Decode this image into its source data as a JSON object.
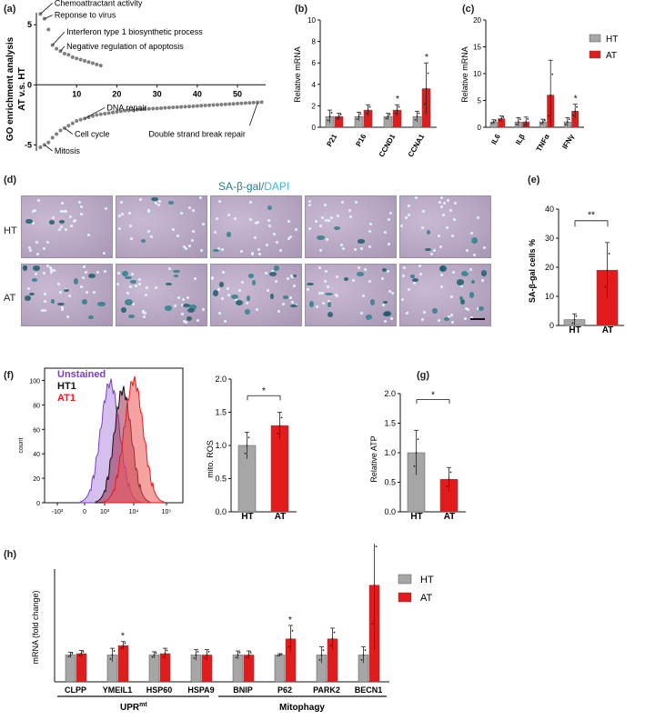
{
  "panels": {
    "a": {
      "label": "(a)",
      "ylabel_line1": "GO enrichment analysis",
      "ylabel_line2": "AT v.s. HT",
      "annotations": [
        "Chemoattractant activity",
        "Reponse to virus",
        "Interferon type 1 biosynthetic process",
        "Negative regulation of apoptosis",
        "DNA repair",
        "Cell cycle",
        "Mitosis",
        "Double strand break repair"
      ],
      "colors": {
        "dots": "#808080"
      }
    },
    "b": {
      "label": "(b)",
      "ylabel": "Relative mRNA",
      "categories": [
        "P21",
        "P16",
        "CCND1",
        "CCNA1"
      ]
    },
    "c": {
      "label": "(c)",
      "ylabel": "Relative mRNA",
      "categories": [
        "IL6",
        "ILβ",
        "TNFα",
        "IFNγ"
      ],
      "legend": [
        "HT",
        "AT"
      ]
    },
    "d": {
      "label": "(d)",
      "title_part1": "SA-β-gal",
      "title_sep": "/",
      "title_part2": "DAPI",
      "row_labels": [
        "HT",
        "AT"
      ]
    },
    "e": {
      "label": "(e)",
      "ylabel": "SA-β-gal cells %",
      "sig": "**",
      "categories": [
        "HT",
        "AT"
      ]
    },
    "f": {
      "label": "(f)",
      "hist_legend": [
        "Unstained",
        "HT1",
        "AT1"
      ],
      "hist_ylabel": "count",
      "hist_yticks": [
        "0",
        "20",
        "40",
        "60",
        "80",
        "100"
      ],
      "hist_xticks": [
        "-10³",
        "0",
        "10³",
        "10⁴",
        "10⁵"
      ],
      "bar_ylabel": "mito. ROS",
      "sig": "*",
      "categories": [
        "HT",
        "AT"
      ]
    },
    "g": {
      "label": "(g)",
      "ylabel": "Relative ATP",
      "sig": "*",
      "categories": [
        "HT",
        "AT"
      ]
    },
    "h": {
      "label": "(h)",
      "ylabel": "mRNA (fold change)",
      "categories": [
        "CLPP",
        "YMEIL1",
        "HSP60",
        "HSPA9",
        "BNIP",
        "P62",
        "PARK2",
        "BECN1"
      ],
      "group1": "UPR",
      "group1_sup": "mt",
      "group2": "Mitophagy",
      "legend": [
        "HT",
        "AT"
      ]
    }
  },
  "colors": {
    "ht": "#a6a6a6",
    "at": "#e21c1c",
    "title_blue": "#2a7a8c",
    "dapi": "#3fb6e0"
  },
  "chart_data": [
    {
      "type": "scatter",
      "panel": "a",
      "ylabel": "GO enrichment analysis AT v.s. HT",
      "xlim": [
        0,
        57
      ],
      "ylim": [
        -5.5,
        6
      ],
      "xticks": [
        10,
        20,
        30,
        40,
        50
      ],
      "yticks": [
        -5,
        0,
        5
      ],
      "series": [
        {
          "x": [
            1,
            2,
            3,
            4,
            5,
            6,
            7,
            8,
            9,
            10,
            11,
            12,
            13,
            14,
            15,
            16
          ],
          "y": [
            5.9,
            5.5,
            4.6,
            3.3,
            3.0,
            2.8,
            2.6,
            2.5,
            2.3,
            2.2,
            2.1,
            2.0,
            1.9,
            1.8,
            1.7,
            1.6
          ]
        },
        {
          "x": [
            1,
            2,
            3,
            4,
            5,
            6,
            7,
            8,
            9,
            10,
            11,
            12,
            13,
            14,
            15,
            16,
            17,
            18,
            19,
            20,
            21,
            22,
            23,
            24,
            25,
            26,
            27,
            28,
            29,
            30,
            31,
            32,
            33,
            34,
            35,
            36,
            37,
            38,
            39,
            40,
            41,
            42,
            43,
            44,
            45,
            46,
            47,
            48,
            49,
            50,
            51,
            52,
            53,
            54,
            55,
            56
          ],
          "y": [
            -5.2,
            -5.0,
            -4.8,
            -4.4,
            -4.1,
            -3.8,
            -3.6,
            -3.4,
            -3.2,
            -3.0,
            -2.9,
            -2.8,
            -2.7,
            -2.6,
            -2.5,
            -2.45,
            -2.4,
            -2.35,
            -2.3,
            -2.25,
            -2.2,
            -2.15,
            -2.12,
            -2.1,
            -2.07,
            -2.05,
            -2.02,
            -2.0,
            -1.98,
            -1.96,
            -1.94,
            -1.92,
            -1.9,
            -1.88,
            -1.86,
            -1.84,
            -1.82,
            -1.8,
            -1.78,
            -1.76,
            -1.74,
            -1.72,
            -1.7,
            -1.68,
            -1.66,
            -1.64,
            -1.62,
            -1.6,
            -1.58,
            -1.56,
            -1.54,
            -1.52,
            -1.5,
            -1.48,
            -1.46,
            -1.44
          ]
        }
      ]
    },
    {
      "type": "bar",
      "panel": "b",
      "ylabel": "Relative mRNA",
      "ylim": [
        0,
        10
      ],
      "yticks": [
        0,
        2,
        4,
        6,
        8,
        10
      ],
      "categories": [
        "P21",
        "P16",
        "CCND1",
        "CCNA1"
      ],
      "series": [
        {
          "name": "HT",
          "values": [
            1.0,
            1.0,
            1.0,
            1.0
          ],
          "err": [
            0.6,
            0.4,
            0.3,
            0.5
          ]
        },
        {
          "name": "AT",
          "values": [
            1.0,
            1.6,
            1.6,
            3.6
          ],
          "err": [
            0.3,
            0.5,
            0.5,
            2.4
          ]
        }
      ],
      "sig": [
        null,
        null,
        "*",
        "*"
      ]
    },
    {
      "type": "bar",
      "panel": "c",
      "ylabel": "Relative mRNA",
      "ylim": [
        0,
        20
      ],
      "yticks": [
        0,
        5,
        10,
        15,
        20
      ],
      "categories": [
        "IL6",
        "ILβ",
        "TNFα",
        "IFNγ"
      ],
      "series": [
        {
          "name": "HT",
          "values": [
            1.0,
            1.0,
            1.0,
            1.0
          ],
          "err": [
            0.4,
            0.8,
            0.5,
            0.8
          ]
        },
        {
          "name": "AT",
          "values": [
            1.6,
            1.0,
            6.0,
            3.0
          ],
          "err": [
            0.5,
            0.9,
            6.5,
            1.3
          ]
        }
      ],
      "sig": [
        null,
        null,
        null,
        "*"
      ]
    },
    {
      "type": "bar",
      "panel": "e",
      "ylabel": "SA-β-gal cells %",
      "ylim": [
        0,
        40
      ],
      "yticks": [
        0,
        10,
        20,
        30,
        40
      ],
      "categories": [
        "HT",
        "AT"
      ],
      "values": [
        2.0,
        19.0
      ],
      "err": [
        2.0,
        9.5
      ]
    },
    {
      "type": "line",
      "panel": "f-histogram",
      "ylabel": "count",
      "ylim": [
        0,
        110
      ],
      "xticks": [
        "-10³",
        "0",
        "10³",
        "10⁴",
        "10⁵"
      ],
      "series": [
        {
          "name": "Unstained"
        },
        {
          "name": "HT1"
        },
        {
          "name": "AT1"
        }
      ]
    },
    {
      "type": "bar",
      "panel": "f",
      "ylabel": "mito. ROS",
      "ylim": [
        0,
        2.0
      ],
      "yticks": [
        0.0,
        0.5,
        1.0,
        1.5,
        2.0
      ],
      "categories": [
        "HT",
        "AT"
      ],
      "values": [
        1.0,
        1.3
      ],
      "err": [
        0.2,
        0.2
      ]
    },
    {
      "type": "bar",
      "panel": "g",
      "ylabel": "Relative ATP",
      "ylim": [
        0,
        2.0
      ],
      "yticks": [
        0.0,
        0.5,
        1.0,
        1.5,
        2.0
      ],
      "categories": [
        "HT",
        "AT"
      ],
      "values": [
        1.0,
        0.55
      ],
      "err": [
        0.38,
        0.2
      ]
    },
    {
      "type": "bar",
      "panel": "h",
      "ylabel": "mRNA (fold change)",
      "categories": [
        "CLPP",
        "YMEIL1",
        "HSP60",
        "HSPA9",
        "BNIP",
        "P62",
        "PARK2",
        "BECN1"
      ],
      "series": [
        {
          "name": "HT",
          "values": [
            1.0,
            1.0,
            1.0,
            1.0,
            1.0,
            1.0,
            1.0,
            1.0
          ],
          "err": [
            0.1,
            0.25,
            0.12,
            0.2,
            0.15,
            0.05,
            0.3,
            0.3
          ]
        },
        {
          "name": "AT",
          "values": [
            1.05,
            1.35,
            1.05,
            1.0,
            1.0,
            1.6,
            1.6,
            3.6
          ],
          "err": [
            0.12,
            0.15,
            0.2,
            0.2,
            0.15,
            0.5,
            0.4,
            2.4
          ]
        }
      ],
      "sig": [
        null,
        "*",
        null,
        null,
        null,
        "*",
        null,
        "*"
      ]
    }
  ]
}
